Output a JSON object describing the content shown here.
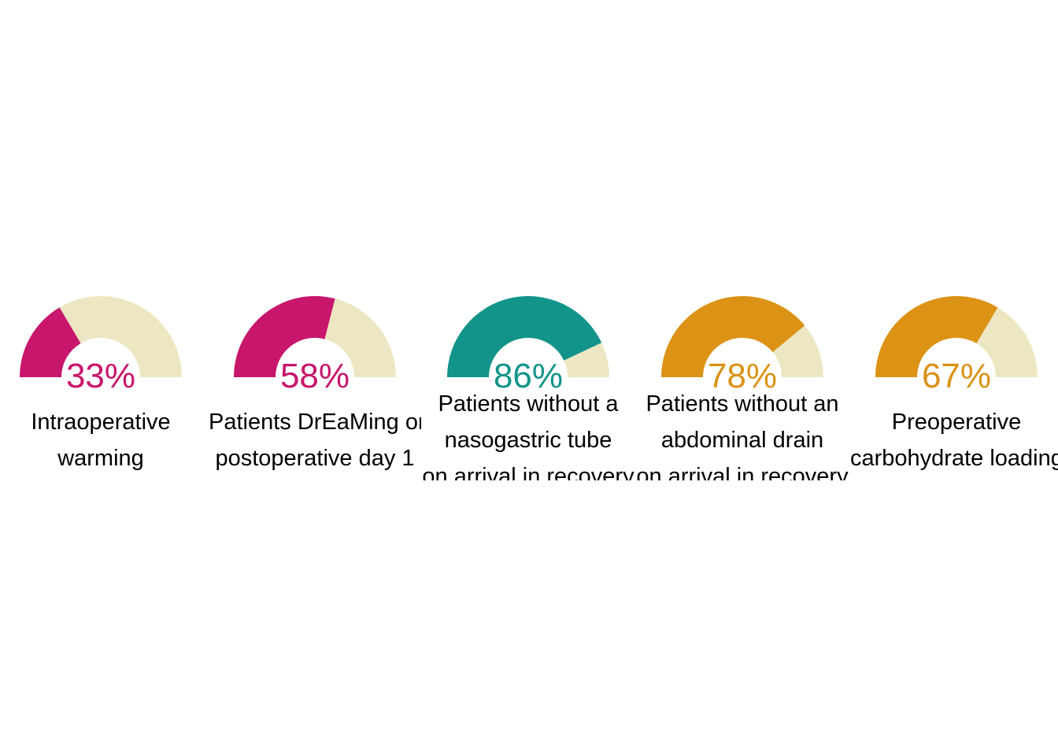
{
  "chart_data": {
    "type": "gauge",
    "track_color": "#ECE7C2",
    "gauges": [
      {
        "value": 33,
        "label_text": "33%",
        "color": "#C8166C",
        "label_lines": [
          "Intraoperative",
          "warming"
        ]
      },
      {
        "value": 58,
        "label_text": "58%",
        "color": "#C8166C",
        "label_lines": [
          "Patients DrEaMing on",
          "postoperative day 1"
        ]
      },
      {
        "value": 86,
        "label_text": "86%",
        "color": "#12948A",
        "label_lines": [
          "Patients without a",
          "nasogastric tube",
          "on arrival in recovery"
        ]
      },
      {
        "value": 78,
        "label_text": "78%",
        "color": "#DB9215",
        "label_lines": [
          "Patients without an",
          "abdominal drain",
          "on arrival in recovery"
        ]
      },
      {
        "value": 67,
        "label_text": "67%",
        "color": "#DB9215",
        "label_lines": [
          "Preoperative",
          "carbohydrate loading"
        ]
      }
    ]
  }
}
